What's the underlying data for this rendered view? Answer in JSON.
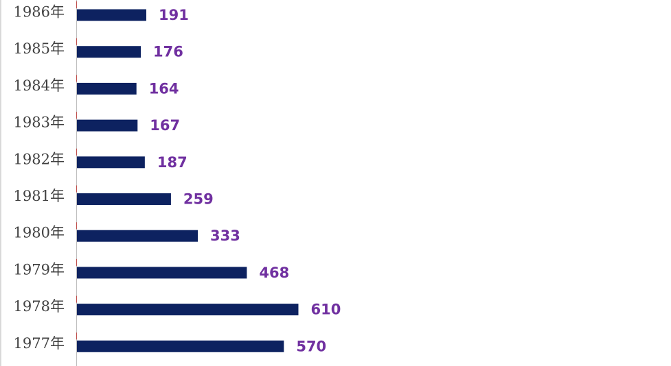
{
  "chart_data": {
    "type": "bar",
    "orientation": "horizontal",
    "categories": [
      "1986年",
      "1985年",
      "1984年",
      "1983年",
      "1982年",
      "1981年",
      "1980年",
      "1979年",
      "1978年",
      "1977年"
    ],
    "values": [
      191,
      176,
      164,
      167,
      187,
      259,
      333,
      468,
      610,
      570
    ],
    "title": "",
    "xlabel": "",
    "ylabel": "",
    "xlim": [
      0,
      1640
    ],
    "grid": false,
    "legend": "none",
    "data_labels": true
  },
  "colors": {
    "bar": "#0d2260",
    "value_label": "#7030a0",
    "axis": "#bfbfbf",
    "tick_mark": "#c0504d"
  }
}
